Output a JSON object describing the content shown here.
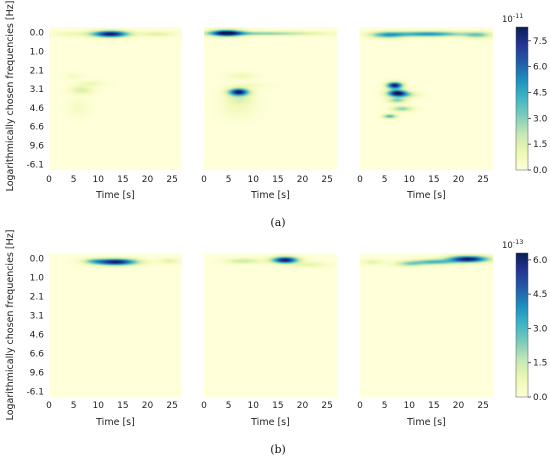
{
  "figure": {
    "caption_a": "(a)",
    "caption_b": "(b)"
  },
  "chart_data": [
    {
      "type": "heatmap",
      "row": "a",
      "panels": 3,
      "xlabel": "Time [s]",
      "ylabel": "Logarithmically chosen frequencies [Hz]",
      "x_ticks": [
        0,
        5,
        10,
        15,
        20,
        25
      ],
      "xlim": [
        0,
        27
      ],
      "y_ticks": [
        "0.0",
        "1.0",
        "2.1",
        "3.1",
        "4.6",
        "6.6",
        "9.6",
        "-6.1"
      ],
      "colorbar": {
        "ticks": [
          "0.0",
          "1.5",
          "3.0",
          "4.5",
          "6.0",
          "7.5"
        ],
        "values": [
          0,
          1.5,
          3.0,
          4.5,
          6.0,
          7.5
        ],
        "max": 8.3,
        "exponent_base": "10",
        "exponent_power": "-11",
        "colormap": [
          "#ffffd9",
          "#edf8b1",
          "#c7e9b4",
          "#7fcdbb",
          "#41b6c4",
          "#1d91c0",
          "#225ea8",
          "#253494",
          "#081d58"
        ]
      },
      "blobs": [
        [
          {
            "t": 12.5,
            "f": 0.05,
            "st": 2.5,
            "sf": 0.12,
            "v": 8.3
          },
          {
            "t": 22.0,
            "f": 0.05,
            "st": 2.5,
            "sf": 0.1,
            "v": 1.4
          },
          {
            "t": 5.0,
            "f": 0.05,
            "st": 3.5,
            "sf": 0.1,
            "v": 0.9
          },
          {
            "t": 6.5,
            "f": 3.05,
            "st": 1.6,
            "sf": 0.15,
            "v": 1.6
          },
          {
            "t": 8.5,
            "f": 2.7,
            "st": 2.0,
            "sf": 0.1,
            "v": 0.9
          },
          {
            "t": 5.0,
            "f": 2.3,
            "st": 1.2,
            "sf": 0.12,
            "v": 0.6
          },
          {
            "t": 6.0,
            "f": 4.0,
            "st": 1.5,
            "sf": 0.3,
            "v": 0.6
          }
        ],
        [
          {
            "t": 4.5,
            "f": 0.0,
            "st": 2.2,
            "sf": 0.12,
            "v": 8.0
          },
          {
            "t": 12.0,
            "f": 0.02,
            "st": 8.0,
            "sf": 0.08,
            "v": 3.0
          },
          {
            "t": 7.0,
            "f": 3.15,
            "st": 1.4,
            "sf": 0.13,
            "v": 8.0
          },
          {
            "t": 7.0,
            "f": 3.5,
            "st": 2.0,
            "sf": 0.25,
            "v": 1.4
          },
          {
            "t": 7.5,
            "f": 2.3,
            "st": 2.0,
            "sf": 0.12,
            "v": 0.9
          },
          {
            "t": 7.0,
            "f": 4.1,
            "st": 2.5,
            "sf": 0.35,
            "v": 0.6
          },
          {
            "t": 9.0,
            "f": 2.8,
            "st": 3.0,
            "sf": 0.1,
            "v": 0.6
          }
        ],
        [
          {
            "t": 14.0,
            "f": 0.05,
            "st": 5.0,
            "sf": 0.1,
            "v": 5.0
          },
          {
            "t": 5.5,
            "f": 0.1,
            "st": 2.5,
            "sf": 0.12,
            "v": 4.0
          },
          {
            "t": 24.0,
            "f": 0.1,
            "st": 2.0,
            "sf": 0.12,
            "v": 3.0
          },
          {
            "t": 7.0,
            "f": 2.8,
            "st": 1.1,
            "sf": 0.12,
            "v": 8.3
          },
          {
            "t": 7.5,
            "f": 3.2,
            "st": 1.3,
            "sf": 0.12,
            "v": 7.0
          },
          {
            "t": 7.5,
            "f": 3.6,
            "st": 1.3,
            "sf": 0.1,
            "v": 3.0
          },
          {
            "t": 8.5,
            "f": 3.3,
            "st": 2.0,
            "sf": 0.12,
            "v": 3.0
          },
          {
            "t": 6.0,
            "f": 4.45,
            "st": 1.0,
            "sf": 0.08,
            "v": 4.0
          },
          {
            "t": 8.5,
            "f": 4.05,
            "st": 1.5,
            "sf": 0.1,
            "v": 3.0
          }
        ]
      ]
    },
    {
      "type": "heatmap",
      "row": "b",
      "panels": 3,
      "xlabel": "Time [s]",
      "ylabel": "Logarithmically chosen frequencies [Hz]",
      "x_ticks": [
        0,
        5,
        10,
        15,
        20,
        25
      ],
      "xlim": [
        0,
        27
      ],
      "y_ticks": [
        "0.0",
        "1.0",
        "2.1",
        "3.1",
        "4.6",
        "6.6",
        "9.6",
        "-6.1"
      ],
      "colorbar": {
        "ticks": [
          "0.0",
          "1.5",
          "3.0",
          "4.5",
          "6.0"
        ],
        "values": [
          0,
          1.5,
          3.0,
          4.5,
          6.0
        ],
        "max": 6.3,
        "exponent_base": "10",
        "exponent_power": "-13",
        "colormap": [
          "#ffffd9",
          "#edf8b1",
          "#c7e9b4",
          "#7fcdbb",
          "#41b6c4",
          "#1d91c0",
          "#225ea8",
          "#253494",
          "#081d58"
        ]
      },
      "blobs": [
        [
          {
            "t": 13.5,
            "f": 0.15,
            "st": 3.0,
            "sf": 0.12,
            "v": 6.3
          },
          {
            "t": 9.0,
            "f": 0.1,
            "st": 1.5,
            "sf": 0.1,
            "v": 1.5
          },
          {
            "t": 24.5,
            "f": 0.1,
            "st": 1.5,
            "sf": 0.1,
            "v": 1.0
          }
        ],
        [
          {
            "t": 16.5,
            "f": 0.05,
            "st": 1.8,
            "sf": 0.12,
            "v": 6.3
          },
          {
            "t": 8.0,
            "f": 0.1,
            "st": 2.5,
            "sf": 0.1,
            "v": 1.5
          },
          {
            "t": 21.5,
            "f": 0.3,
            "st": 2.5,
            "sf": 0.1,
            "v": 0.9
          }
        ],
        [
          {
            "t": 22.0,
            "f": 0.0,
            "st": 2.8,
            "sf": 0.12,
            "v": 6.3
          },
          {
            "t": 15.0,
            "f": 0.15,
            "st": 3.0,
            "sf": 0.1,
            "v": 3.0
          },
          {
            "t": 10.0,
            "f": 0.25,
            "st": 2.0,
            "sf": 0.1,
            "v": 2.0
          },
          {
            "t": 2.5,
            "f": 0.15,
            "st": 1.5,
            "sf": 0.1,
            "v": 1.0
          }
        ]
      ]
    }
  ]
}
